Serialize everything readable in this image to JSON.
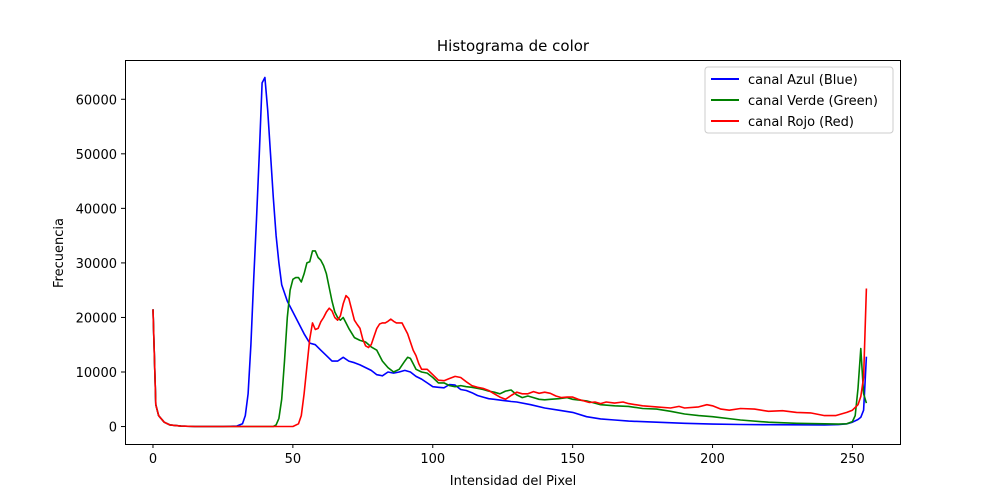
{
  "chart_data": {
    "type": "line",
    "title": "Histograma de color",
    "xlabel": "Intensidad del Pixel",
    "ylabel": "Frecuencia",
    "xlim": [
      -10,
      267
    ],
    "ylim": [
      -3200,
      67200
    ],
    "xticks": [
      0,
      50,
      100,
      150,
      200,
      250
    ],
    "yticks": [
      0,
      10000,
      20000,
      30000,
      40000,
      50000,
      60000
    ],
    "grid": false,
    "legend_position": "top-right",
    "series": [
      {
        "name": "canal Azul (Blue)",
        "color": "#0000ff",
        "points": [
          [
            0,
            21500
          ],
          [
            1,
            4000
          ],
          [
            2,
            2000
          ],
          [
            4,
            800
          ],
          [
            6,
            300
          ],
          [
            10,
            80
          ],
          [
            15,
            0
          ],
          [
            20,
            0
          ],
          [
            25,
            0
          ],
          [
            30,
            100
          ],
          [
            32,
            500
          ],
          [
            33,
            2000
          ],
          [
            34,
            6000
          ],
          [
            35,
            15000
          ],
          [
            36,
            27000
          ],
          [
            37,
            38000
          ],
          [
            38,
            50000
          ],
          [
            39,
            63000
          ],
          [
            40,
            64000
          ],
          [
            41,
            58000
          ],
          [
            42,
            50000
          ],
          [
            43,
            42000
          ],
          [
            44,
            35000
          ],
          [
            45,
            30000
          ],
          [
            46,
            26000
          ],
          [
            48,
            23000
          ],
          [
            50,
            21000
          ],
          [
            52,
            19000
          ],
          [
            54,
            17000
          ],
          [
            56,
            15300
          ],
          [
            58,
            15000
          ],
          [
            60,
            14000
          ],
          [
            62,
            13000
          ],
          [
            64,
            12000
          ],
          [
            66,
            12000
          ],
          [
            68,
            12700
          ],
          [
            70,
            12000
          ],
          [
            72,
            11700
          ],
          [
            74,
            11300
          ],
          [
            76,
            10800
          ],
          [
            78,
            10300
          ],
          [
            80,
            9500
          ],
          [
            82,
            9300
          ],
          [
            84,
            10000
          ],
          [
            86,
            9800
          ],
          [
            88,
            10000
          ],
          [
            90,
            10300
          ],
          [
            92,
            10000
          ],
          [
            94,
            9200
          ],
          [
            96,
            8700
          ],
          [
            98,
            8000
          ],
          [
            100,
            7300
          ],
          [
            102,
            7200
          ],
          [
            104,
            7100
          ],
          [
            106,
            7700
          ],
          [
            108,
            7600
          ],
          [
            110,
            6800
          ],
          [
            112,
            6600
          ],
          [
            114,
            6200
          ],
          [
            116,
            5700
          ],
          [
            118,
            5400
          ],
          [
            120,
            5100
          ],
          [
            122,
            5000
          ],
          [
            125,
            4800
          ],
          [
            128,
            4600
          ],
          [
            130,
            4500
          ],
          [
            135,
            4000
          ],
          [
            140,
            3400
          ],
          [
            145,
            3000
          ],
          [
            150,
            2600
          ],
          [
            155,
            1800
          ],
          [
            160,
            1400
          ],
          [
            165,
            1200
          ],
          [
            170,
            1000
          ],
          [
            180,
            800
          ],
          [
            190,
            600
          ],
          [
            200,
            450
          ],
          [
            210,
            380
          ],
          [
            220,
            330
          ],
          [
            230,
            320
          ],
          [
            240,
            300
          ],
          [
            245,
            350
          ],
          [
            248,
            500
          ],
          [
            250,
            800
          ],
          [
            252,
            1300
          ],
          [
            253,
            1700
          ],
          [
            254,
            3000
          ],
          [
            255,
            12800
          ]
        ]
      },
      {
        "name": "canal Verde (Green)",
        "color": "#008000",
        "points": [
          [
            0,
            21500
          ],
          [
            1,
            4000
          ],
          [
            2,
            2000
          ],
          [
            4,
            800
          ],
          [
            6,
            300
          ],
          [
            10,
            80
          ],
          [
            15,
            0
          ],
          [
            20,
            0
          ],
          [
            30,
            0
          ],
          [
            40,
            0
          ],
          [
            43,
            0
          ],
          [
            44,
            300
          ],
          [
            45,
            1500
          ],
          [
            46,
            5000
          ],
          [
            47,
            12000
          ],
          [
            48,
            20000
          ],
          [
            49,
            25000
          ],
          [
            50,
            27000
          ],
          [
            51,
            27300
          ],
          [
            52,
            27300
          ],
          [
            53,
            26500
          ],
          [
            54,
            28000
          ],
          [
            55,
            30000
          ],
          [
            56,
            30200
          ],
          [
            57,
            32200
          ],
          [
            58,
            32200
          ],
          [
            59,
            31000
          ],
          [
            60,
            30500
          ],
          [
            61,
            29500
          ],
          [
            62,
            28000
          ],
          [
            63,
            25500
          ],
          [
            64,
            23000
          ],
          [
            65,
            21000
          ],
          [
            66,
            20000
          ],
          [
            67,
            19500
          ],
          [
            68,
            20000
          ],
          [
            69,
            19000
          ],
          [
            70,
            18000
          ],
          [
            72,
            16300
          ],
          [
            74,
            15800
          ],
          [
            76,
            15500
          ],
          [
            78,
            14600
          ],
          [
            80,
            14000
          ],
          [
            82,
            12000
          ],
          [
            84,
            10800
          ],
          [
            86,
            10000
          ],
          [
            88,
            10500
          ],
          [
            90,
            12000
          ],
          [
            91,
            12700
          ],
          [
            92,
            12500
          ],
          [
            93,
            11500
          ],
          [
            94,
            10500
          ],
          [
            96,
            10000
          ],
          [
            98,
            9800
          ],
          [
            100,
            9000
          ],
          [
            102,
            8000
          ],
          [
            104,
            8000
          ],
          [
            106,
            7500
          ],
          [
            108,
            7300
          ],
          [
            110,
            7500
          ],
          [
            112,
            7300
          ],
          [
            114,
            7200
          ],
          [
            116,
            7000
          ],
          [
            118,
            6800
          ],
          [
            120,
            6500
          ],
          [
            122,
            6300
          ],
          [
            124,
            6000
          ],
          [
            126,
            6500
          ],
          [
            128,
            6700
          ],
          [
            130,
            5800
          ],
          [
            132,
            5300
          ],
          [
            134,
            5600
          ],
          [
            136,
            5300
          ],
          [
            138,
            5000
          ],
          [
            140,
            4900
          ],
          [
            142,
            5000
          ],
          [
            145,
            5100
          ],
          [
            148,
            5300
          ],
          [
            150,
            5000
          ],
          [
            155,
            4700
          ],
          [
            160,
            4000
          ],
          [
            165,
            3800
          ],
          [
            170,
            3700
          ],
          [
            175,
            3300
          ],
          [
            180,
            3200
          ],
          [
            185,
            2800
          ],
          [
            190,
            2300
          ],
          [
            195,
            2000
          ],
          [
            200,
            1800
          ],
          [
            210,
            1200
          ],
          [
            220,
            800
          ],
          [
            230,
            600
          ],
          [
            240,
            500
          ],
          [
            245,
            450
          ],
          [
            248,
            500
          ],
          [
            250,
            900
          ],
          [
            251,
            2000
          ],
          [
            252,
            7000
          ],
          [
            253,
            14300
          ],
          [
            254,
            6000
          ],
          [
            255,
            4300
          ]
        ]
      },
      {
        "name": "canal Rojo (Red)",
        "color": "#ff0000",
        "points": [
          [
            0,
            21500
          ],
          [
            1,
            4000
          ],
          [
            2,
            2000
          ],
          [
            4,
            800
          ],
          [
            6,
            300
          ],
          [
            10,
            80
          ],
          [
            15,
            0
          ],
          [
            20,
            0
          ],
          [
            30,
            0
          ],
          [
            40,
            0
          ],
          [
            50,
            0
          ],
          [
            52,
            500
          ],
          [
            53,
            2000
          ],
          [
            54,
            6000
          ],
          [
            55,
            11000
          ],
          [
            56,
            16000
          ],
          [
            57,
            19000
          ],
          [
            58,
            17800
          ],
          [
            59,
            18000
          ],
          [
            60,
            19200
          ],
          [
            61,
            20000
          ],
          [
            62,
            21000
          ],
          [
            63,
            21700
          ],
          [
            64,
            21200
          ],
          [
            65,
            20000
          ],
          [
            66,
            19500
          ],
          [
            67,
            20300
          ],
          [
            68,
            22500
          ],
          [
            69,
            24000
          ],
          [
            70,
            23500
          ],
          [
            71,
            21500
          ],
          [
            72,
            19500
          ],
          [
            73,
            18700
          ],
          [
            74,
            18000
          ],
          [
            75,
            16000
          ],
          [
            76,
            14800
          ],
          [
            77,
            14500
          ],
          [
            78,
            15000
          ],
          [
            79,
            16500
          ],
          [
            80,
            18000
          ],
          [
            81,
            18800
          ],
          [
            82,
            19000
          ],
          [
            83,
            19000
          ],
          [
            84,
            19300
          ],
          [
            85,
            19700
          ],
          [
            86,
            19300
          ],
          [
            87,
            19000
          ],
          [
            88,
            19000
          ],
          [
            89,
            19000
          ],
          [
            90,
            18000
          ],
          [
            91,
            17000
          ],
          [
            92,
            15500
          ],
          [
            93,
            14000
          ],
          [
            94,
            13000
          ],
          [
            95,
            11500
          ],
          [
            96,
            10500
          ],
          [
            98,
            10500
          ],
          [
            100,
            9500
          ],
          [
            102,
            8500
          ],
          [
            104,
            8400
          ],
          [
            106,
            8800
          ],
          [
            108,
            9200
          ],
          [
            110,
            9000
          ],
          [
            112,
            8200
          ],
          [
            114,
            7500
          ],
          [
            116,
            7200
          ],
          [
            118,
            7000
          ],
          [
            120,
            6600
          ],
          [
            122,
            6000
          ],
          [
            124,
            5400
          ],
          [
            126,
            5000
          ],
          [
            128,
            5700
          ],
          [
            130,
            6300
          ],
          [
            132,
            6000
          ],
          [
            134,
            6000
          ],
          [
            136,
            6400
          ],
          [
            138,
            6100
          ],
          [
            140,
            6300
          ],
          [
            142,
            6100
          ],
          [
            144,
            5600
          ],
          [
            146,
            5300
          ],
          [
            148,
            5400
          ],
          [
            150,
            5400
          ],
          [
            152,
            5000
          ],
          [
            154,
            4700
          ],
          [
            156,
            4400
          ],
          [
            158,
            4500
          ],
          [
            160,
            4200
          ],
          [
            162,
            4500
          ],
          [
            165,
            4300
          ],
          [
            168,
            4500
          ],
          [
            170,
            4200
          ],
          [
            175,
            3800
          ],
          [
            180,
            3600
          ],
          [
            185,
            3400
          ],
          [
            188,
            3700
          ],
          [
            190,
            3400
          ],
          [
            195,
            3600
          ],
          [
            198,
            4000
          ],
          [
            200,
            3800
          ],
          [
            203,
            3200
          ],
          [
            206,
            3000
          ],
          [
            210,
            3300
          ],
          [
            215,
            3200
          ],
          [
            220,
            2800
          ],
          [
            225,
            2900
          ],
          [
            230,
            2600
          ],
          [
            235,
            2500
          ],
          [
            240,
            2000
          ],
          [
            244,
            2000
          ],
          [
            246,
            2300
          ],
          [
            248,
            2600
          ],
          [
            250,
            3000
          ],
          [
            252,
            4000
          ],
          [
            253,
            5500
          ],
          [
            254,
            9000
          ],
          [
            255,
            25300
          ]
        ]
      }
    ]
  }
}
